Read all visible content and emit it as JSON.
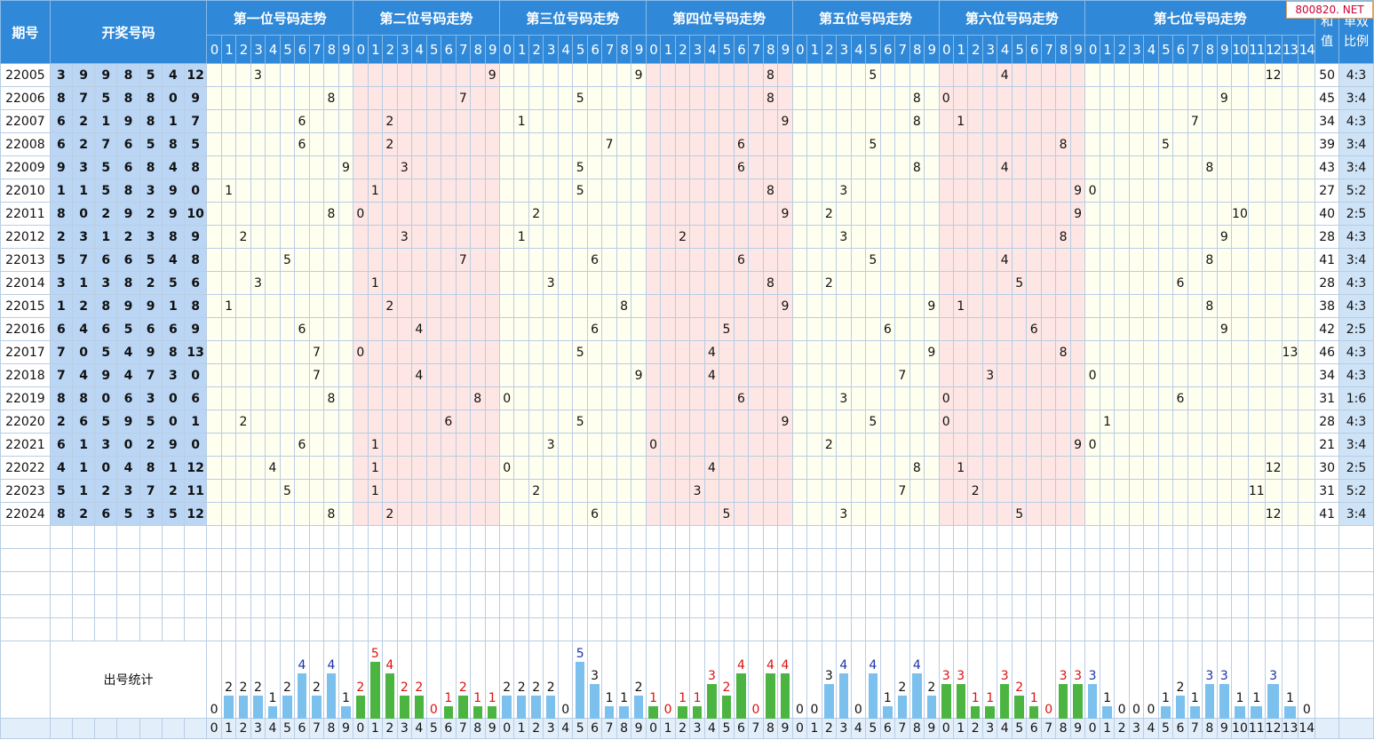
{
  "header": {
    "issue_label": "期号",
    "draw_label": "开奖号码",
    "sum_label": "和值",
    "ratio_label": "单双比例",
    "section_titles": [
      "第一位号码走势",
      "第二位号码走势",
      "第三位号码走势",
      "第四位号码走势",
      "第五位号码走势",
      "第六位号码走势",
      "第七位号码走势"
    ]
  },
  "watermark": "800820. NET",
  "stat_label": "出号统计",
  "rows": [
    {
      "issue": "22005",
      "nums": [
        3,
        9,
        9,
        8,
        5,
        4,
        12
      ],
      "sum": "50",
      "ratio": "4:3"
    },
    {
      "issue": "22006",
      "nums": [
        8,
        7,
        5,
        8,
        8,
        0,
        9
      ],
      "sum": "45",
      "ratio": "3:4"
    },
    {
      "issue": "22007",
      "nums": [
        6,
        2,
        1,
        9,
        8,
        1,
        7
      ],
      "sum": "34",
      "ratio": "4:3"
    },
    {
      "issue": "22008",
      "nums": [
        6,
        2,
        7,
        6,
        5,
        8,
        5
      ],
      "sum": "39",
      "ratio": "3:4"
    },
    {
      "issue": "22009",
      "nums": [
        9,
        3,
        5,
        6,
        8,
        4,
        8
      ],
      "sum": "43",
      "ratio": "3:4"
    },
    {
      "issue": "22010",
      "nums": [
        1,
        1,
        5,
        8,
        3,
        9,
        0
      ],
      "sum": "27",
      "ratio": "5:2"
    },
    {
      "issue": "22011",
      "nums": [
        8,
        0,
        2,
        9,
        2,
        9,
        10
      ],
      "sum": "40",
      "ratio": "2:5"
    },
    {
      "issue": "22012",
      "nums": [
        2,
        3,
        1,
        2,
        3,
        8,
        9
      ],
      "sum": "28",
      "ratio": "4:3"
    },
    {
      "issue": "22013",
      "nums": [
        5,
        7,
        6,
        6,
        5,
        4,
        8
      ],
      "sum": "41",
      "ratio": "3:4"
    },
    {
      "issue": "22014",
      "nums": [
        3,
        1,
        3,
        8,
        2,
        5,
        6
      ],
      "sum": "28",
      "ratio": "4:3"
    },
    {
      "issue": "22015",
      "nums": [
        1,
        2,
        8,
        9,
        9,
        1,
        8
      ],
      "sum": "38",
      "ratio": "4:3"
    },
    {
      "issue": "22016",
      "nums": [
        6,
        4,
        6,
        5,
        6,
        6,
        9
      ],
      "sum": "42",
      "ratio": "2:5"
    },
    {
      "issue": "22017",
      "nums": [
        7,
        0,
        5,
        4,
        9,
        8,
        13
      ],
      "sum": "46",
      "ratio": "4:3"
    },
    {
      "issue": "22018",
      "nums": [
        7,
        4,
        9,
        4,
        7,
        3,
        0
      ],
      "sum": "34",
      "ratio": "4:3"
    },
    {
      "issue": "22019",
      "nums": [
        8,
        8,
        0,
        6,
        3,
        0,
        6
      ],
      "sum": "31",
      "ratio": "1:6"
    },
    {
      "issue": "22020",
      "nums": [
        2,
        6,
        5,
        9,
        5,
        0,
        1
      ],
      "sum": "28",
      "ratio": "4:3"
    },
    {
      "issue": "22021",
      "nums": [
        6,
        1,
        3,
        0,
        2,
        9,
        0
      ],
      "sum": "21",
      "ratio": "3:4"
    },
    {
      "issue": "22022",
      "nums": [
        4,
        1,
        0,
        4,
        8,
        1,
        12
      ],
      "sum": "30",
      "ratio": "2:5"
    },
    {
      "issue": "22023",
      "nums": [
        5,
        1,
        2,
        3,
        7,
        2,
        11
      ],
      "sum": "31",
      "ratio": "5:2"
    },
    {
      "issue": "22024",
      "nums": [
        8,
        2,
        6,
        5,
        3,
        5,
        12
      ],
      "sum": "41",
      "ratio": "3:4"
    }
  ],
  "stats": [
    [
      0,
      2,
      2,
      2,
      1,
      2,
      4,
      2,
      4,
      1
    ],
    [
      2,
      5,
      4,
      2,
      2,
      0,
      1,
      2,
      1,
      1
    ],
    [
      2,
      2,
      2,
      2,
      0,
      5,
      3,
      1,
      1,
      2
    ],
    [
      1,
      0,
      1,
      1,
      3,
      2,
      4,
      0,
      4,
      4
    ],
    [
      0,
      0,
      3,
      4,
      0,
      4,
      1,
      2,
      4,
      2
    ],
    [
      3,
      3,
      1,
      1,
      3,
      2,
      1,
      0,
      3,
      3
    ],
    [
      3,
      1,
      0,
      0,
      0,
      1,
      2,
      1,
      3,
      3,
      1,
      1,
      3,
      1,
      0
    ]
  ],
  "colors": {
    "bar_blue": "#7cc0ee",
    "bar_green": "#4cb542",
    "count_red": "#dd1111",
    "count_blue": "#1a33a8"
  }
}
